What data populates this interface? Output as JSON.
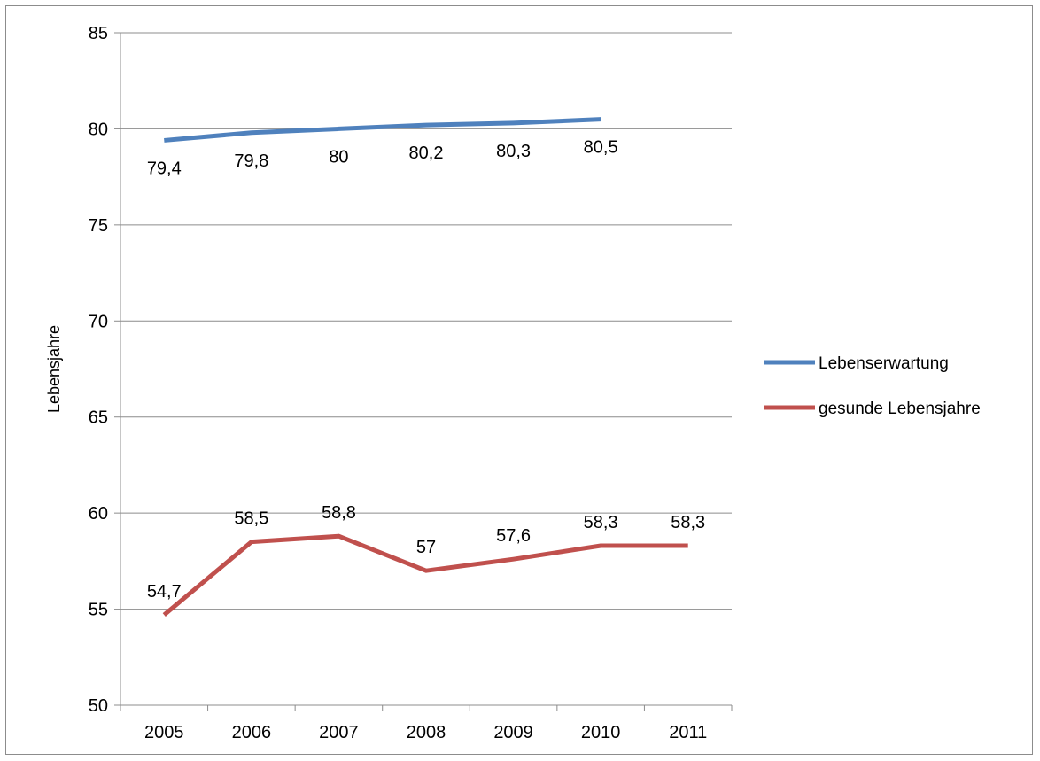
{
  "chart_data": {
    "type": "line",
    "title": "",
    "xlabel": "",
    "ylabel": "Lebensjahre",
    "categories": [
      "2005",
      "2006",
      "2007",
      "2008",
      "2009",
      "2010",
      "2011"
    ],
    "ylim": [
      50,
      85
    ],
    "yticks": [
      50,
      55,
      60,
      65,
      70,
      75,
      80,
      85
    ],
    "grid": true,
    "legend_position": "right",
    "series": [
      {
        "name": "Lebenserwartung",
        "color": "#4f81bd",
        "values": [
          79.4,
          79.8,
          80,
          80.2,
          80.3,
          80.5,
          null
        ],
        "labels": [
          "79,4",
          "79,8",
          "80",
          "80,2",
          "80,3",
          "80,5",
          null
        ],
        "label_position": "below"
      },
      {
        "name": "gesunde Lebensjahre",
        "color": "#c0504d",
        "values": [
          54.7,
          58.5,
          58.8,
          57,
          57.6,
          58.3,
          58.3
        ],
        "labels": [
          "54,7",
          "58,5",
          "58,8",
          "57",
          "57,6",
          "58,3",
          "58,3"
        ],
        "label_position": "above"
      }
    ]
  }
}
